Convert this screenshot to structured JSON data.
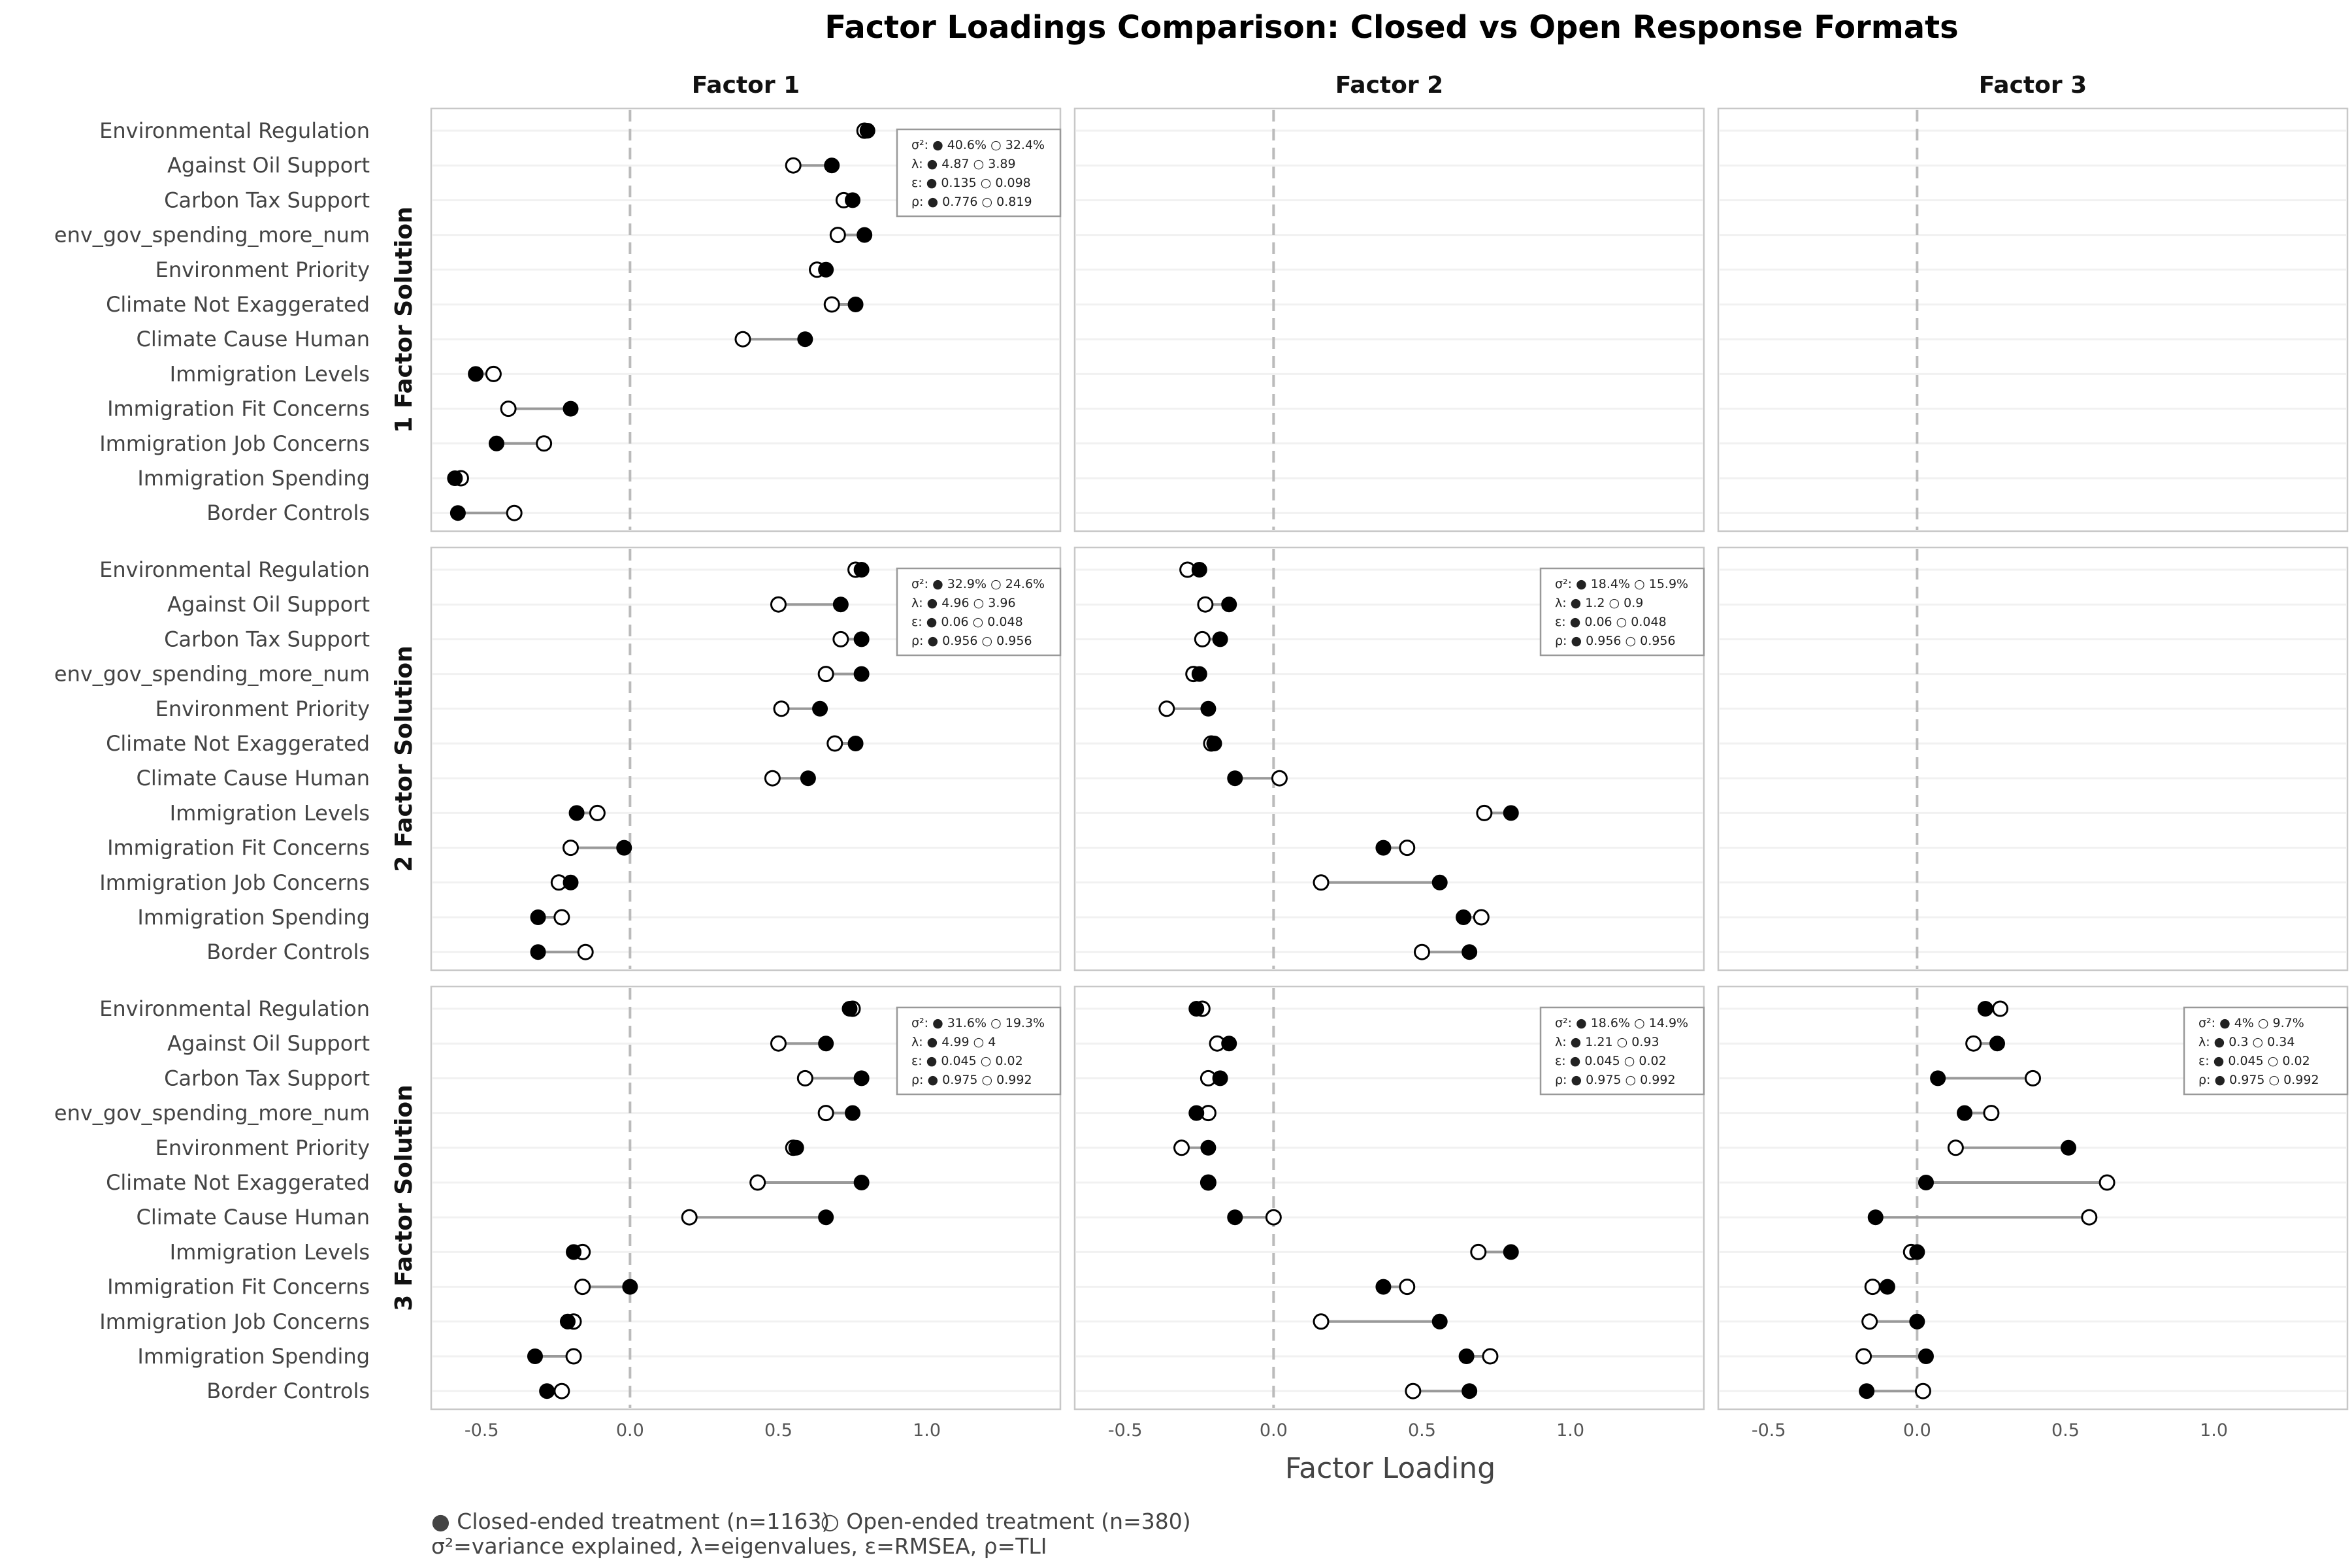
{
  "chart_data": {
    "type": "dot-plot",
    "title": "Factor Loadings Comparison: Closed vs Open Response Formats",
    "xlabel": "Factor Loading",
    "xlim": [
      -0.67,
      1.45
    ],
    "x_ticks": [
      -0.5,
      0.0,
      0.5,
      1.0
    ],
    "x_tick_labels": [
      "-0.5",
      "0.0",
      "0.5",
      "1.0"
    ],
    "reference_line_x": 0.0,
    "columns": [
      "Factor 1",
      "Factor 2",
      "Factor 3"
    ],
    "rows": [
      "1 Factor Solution",
      "2 Factor Solution",
      "3 Factor Solution"
    ],
    "items": [
      "Environmental Regulation",
      "Against Oil Support",
      "Carbon Tax Support",
      "env_gov_spending_more_num",
      "Environment Priority",
      "Climate Not Exaggerated",
      "Climate Cause Human",
      "Immigration Levels",
      "Immigration Fit Concerns",
      "Immigration Job Concerns",
      "Immigration Spending",
      "Border Controls"
    ],
    "legend": {
      "closed": "● Closed-ended treatment (n=1163)",
      "open": "○ Open-ended treatment (n=380)",
      "note": "σ²=variance explained, λ=eigenvalues, ε=RMSEA, ρ=TLI"
    },
    "colors": {
      "closed": "#000000",
      "open": "#ffffff",
      "connector": "#999999",
      "zero_line": "#bbbbbb"
    },
    "panels": [
      {
        "row": 0,
        "col": 0,
        "closed": [
          0.8,
          0.68,
          0.75,
          0.79,
          0.66,
          0.76,
          0.59,
          -0.52,
          -0.2,
          -0.45,
          -0.59,
          -0.58
        ],
        "open": [
          0.79,
          0.55,
          0.72,
          0.7,
          0.63,
          0.68,
          0.38,
          -0.46,
          -0.41,
          -0.29,
          -0.57,
          -0.39
        ],
        "stats": {
          "line1": "σ²: ● 40.6% ○ 32.4%",
          "line2": "λ: ● 4.87 ○ 3.89",
          "line3": "ε: ● 0.135 ○ 0.098",
          "line4": "ρ: ● 0.776 ○ 0.819"
        }
      },
      {
        "row": 0,
        "col": 1,
        "closed": [],
        "open": [],
        "stats": null
      },
      {
        "row": 0,
        "col": 2,
        "closed": [],
        "open": [],
        "stats": null
      },
      {
        "row": 1,
        "col": 0,
        "closed": [
          0.78,
          0.71,
          0.78,
          0.78,
          0.64,
          0.76,
          0.6,
          -0.18,
          -0.02,
          -0.2,
          -0.31,
          -0.31
        ],
        "open": [
          0.76,
          0.5,
          0.71,
          0.66,
          0.51,
          0.69,
          0.48,
          -0.11,
          -0.2,
          -0.24,
          -0.23,
          -0.15
        ],
        "stats": {
          "line1": "σ²: ● 32.9% ○ 24.6%",
          "line2": "λ: ● 4.96 ○ 3.96",
          "line3": "ε: ● 0.06 ○ 0.048",
          "line4": "ρ: ● 0.956 ○ 0.956"
        }
      },
      {
        "row": 1,
        "col": 1,
        "closed": [
          -0.25,
          -0.15,
          -0.18,
          -0.25,
          -0.22,
          -0.2,
          -0.13,
          0.8,
          0.37,
          0.56,
          0.64,
          0.66
        ],
        "open": [
          -0.29,
          -0.23,
          -0.24,
          -0.27,
          -0.36,
          -0.21,
          0.02,
          0.71,
          0.45,
          0.16,
          0.7,
          0.5
        ],
        "stats": {
          "line1": "σ²: ● 18.4% ○ 15.9%",
          "line2": "λ: ● 1.2 ○ 0.9",
          "line3": "ε: ● 0.06 ○ 0.048",
          "line4": "ρ: ● 0.956 ○ 0.956"
        }
      },
      {
        "row": 1,
        "col": 2,
        "closed": [],
        "open": [],
        "stats": null
      },
      {
        "row": 2,
        "col": 0,
        "closed": [
          0.74,
          0.66,
          0.78,
          0.75,
          0.56,
          0.78,
          0.66,
          -0.19,
          0.0,
          -0.21,
          -0.32,
          -0.28
        ],
        "open": [
          0.75,
          0.5,
          0.59,
          0.66,
          0.55,
          0.43,
          0.2,
          -0.16,
          -0.16,
          -0.19,
          -0.19,
          -0.23
        ],
        "stats": {
          "line1": "σ²: ● 31.6% ○ 19.3%",
          "line2": "λ: ● 4.99 ○ 4",
          "line3": "ε: ● 0.045 ○ 0.02",
          "line4": "ρ: ● 0.975 ○ 0.992"
        }
      },
      {
        "row": 2,
        "col": 1,
        "closed": [
          -0.26,
          -0.15,
          -0.18,
          -0.26,
          -0.22,
          -0.22,
          -0.13,
          0.8,
          0.37,
          0.56,
          0.65,
          0.66
        ],
        "open": [
          -0.24,
          -0.19,
          -0.22,
          -0.22,
          -0.31,
          -0.22,
          0.0,
          0.69,
          0.45,
          0.16,
          0.73,
          0.47
        ],
        "stats": {
          "line1": "σ²: ● 18.6% ○ 14.9%",
          "line2": "λ: ● 1.21 ○ 0.93",
          "line3": "ε: ● 0.045 ○ 0.02",
          "line4": "ρ: ● 0.975 ○ 0.992"
        }
      },
      {
        "row": 2,
        "col": 2,
        "closed": [
          0.23,
          0.27,
          0.07,
          0.16,
          0.51,
          0.03,
          -0.14,
          0.0,
          -0.1,
          0.0,
          0.03,
          -0.17
        ],
        "open": [
          0.28,
          0.19,
          0.39,
          0.25,
          0.13,
          0.64,
          0.58,
          -0.02,
          -0.15,
          -0.16,
          -0.18,
          0.02
        ],
        "stats": {
          "line1": "σ²: ● 4% ○ 9.7%",
          "line2": "λ: ● 0.3 ○ 0.34",
          "line3": "ε: ● 0.045 ○ 0.02",
          "line4": "ρ: ● 0.975 ○ 0.992"
        }
      }
    ]
  }
}
